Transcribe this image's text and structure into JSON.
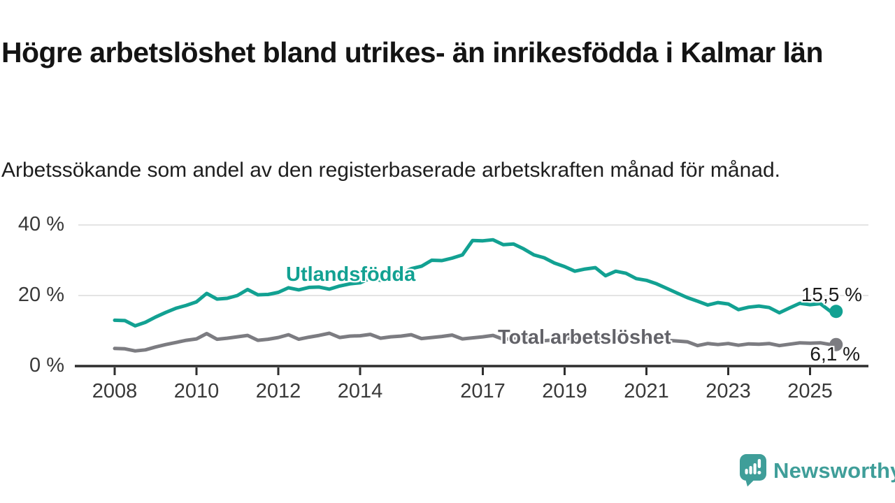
{
  "header": {
    "title": "Högre arbetslöshet bland utrikes- än inrikesfödda i Kalmar län",
    "subtitle": "Arbetssökande som andel av den registerbaserade arbetskraften månad för månad."
  },
  "chart_data": {
    "type": "line",
    "title": "Högre arbetslöshet bland utrikes- än inrikesfödda i Kalmar län",
    "subtitle": "Arbetssökande som andel av den registerbaserade arbetskraften månad för månad.",
    "grid": true,
    "legend": "inline-labels",
    "ylim": [
      0,
      42
    ],
    "xlim": [
      2007.1,
      2026.3
    ],
    "y_axis": {
      "ticks": [
        {
          "value": 0,
          "label": "0 %"
        },
        {
          "value": 20,
          "label": "20 %"
        },
        {
          "value": 40,
          "label": "40 %"
        }
      ]
    },
    "x_axis": {
      "ticks": [
        2008,
        2010,
        2012,
        2014,
        2017,
        2019,
        2021,
        2023,
        2025
      ]
    },
    "x": [
      2008.0,
      2008.25,
      2008.5,
      2008.75,
      2009.0,
      2009.25,
      2009.5,
      2009.75,
      2010.0,
      2010.25,
      2010.5,
      2010.75,
      2011.0,
      2011.25,
      2011.5,
      2011.75,
      2012.0,
      2012.25,
      2012.5,
      2012.75,
      2013.0,
      2013.25,
      2013.5,
      2013.75,
      2014.0,
      2014.25,
      2014.5,
      2014.75,
      2015.0,
      2015.25,
      2015.5,
      2015.75,
      2016.0,
      2016.25,
      2016.5,
      2016.75,
      2017.0,
      2017.25,
      2017.5,
      2017.75,
      2018.0,
      2018.25,
      2018.5,
      2018.75,
      2019.0,
      2019.25,
      2019.5,
      2019.75,
      2020.0,
      2020.25,
      2020.5,
      2020.75,
      2021.0,
      2021.25,
      2021.5,
      2021.75,
      2022.0,
      2022.25,
      2022.5,
      2022.75,
      2023.0,
      2023.25,
      2023.5,
      2023.75,
      2024.0,
      2024.25,
      2024.5,
      2024.75,
      2025.0,
      2025.25,
      2025.5
    ],
    "series": [
      {
        "name": "Utlandsfödda",
        "color": "#12a192",
        "end_label": "15,5 %",
        "end_value": 15.5,
        "values": [
          13.0,
          12.9,
          11.4,
          12.4,
          13.9,
          15.2,
          16.4,
          17.2,
          18.2,
          20.6,
          19.0,
          19.2,
          20.0,
          21.7,
          20.2,
          20.3,
          20.9,
          22.2,
          21.6,
          22.3,
          22.4,
          21.8,
          22.7,
          23.3,
          23.6,
          24.9,
          24.3,
          25.2,
          26.2,
          27.6,
          28.3,
          30.0,
          29.9,
          30.6,
          31.5,
          35.6,
          35.5,
          35.8,
          34.4,
          34.6,
          33.2,
          31.5,
          30.7,
          29.2,
          28.2,
          26.9,
          27.5,
          27.9,
          25.6,
          26.9,
          26.3,
          24.8,
          24.3,
          23.3,
          22.0,
          20.7,
          19.4,
          18.4,
          17.3,
          18.0,
          17.6,
          16.0,
          16.7,
          17.0,
          16.6,
          15.1,
          16.5,
          17.8,
          17.4,
          17.7,
          15.5
        ]
      },
      {
        "name": "Total arbetslöshet",
        "color": "#7c7c81",
        "label_color": "#636369",
        "end_label": "6,1 %",
        "end_value": 6.1,
        "values": [
          5.0,
          4.9,
          4.3,
          4.6,
          5.4,
          6.1,
          6.7,
          7.3,
          7.7,
          9.2,
          7.6,
          7.9,
          8.3,
          8.7,
          7.3,
          7.6,
          8.1,
          8.9,
          7.6,
          8.2,
          8.7,
          9.3,
          8.1,
          8.5,
          8.6,
          9.0,
          7.9,
          8.3,
          8.5,
          8.9,
          7.8,
          8.1,
          8.4,
          8.8,
          7.7,
          8.0,
          8.3,
          8.7,
          7.6,
          7.8,
          8.0,
          8.3,
          7.2,
          7.4,
          7.7,
          8.0,
          7.3,
          7.5,
          7.8,
          8.9,
          8.8,
          8.5,
          8.2,
          7.9,
          7.3,
          7.1,
          6.9,
          5.8,
          6.4,
          6.1,
          6.4,
          5.9,
          6.3,
          6.2,
          6.4,
          5.8,
          6.2,
          6.6,
          6.5,
          6.6,
          6.1
        ]
      }
    ],
    "style": {
      "grid_color": "#dcdcdc",
      "axis_color": "#2e2e2e",
      "tick_label_color": "#393939"
    }
  },
  "branding": {
    "logo_text": "Newsworthy",
    "logo_color": "#3f9e99"
  }
}
